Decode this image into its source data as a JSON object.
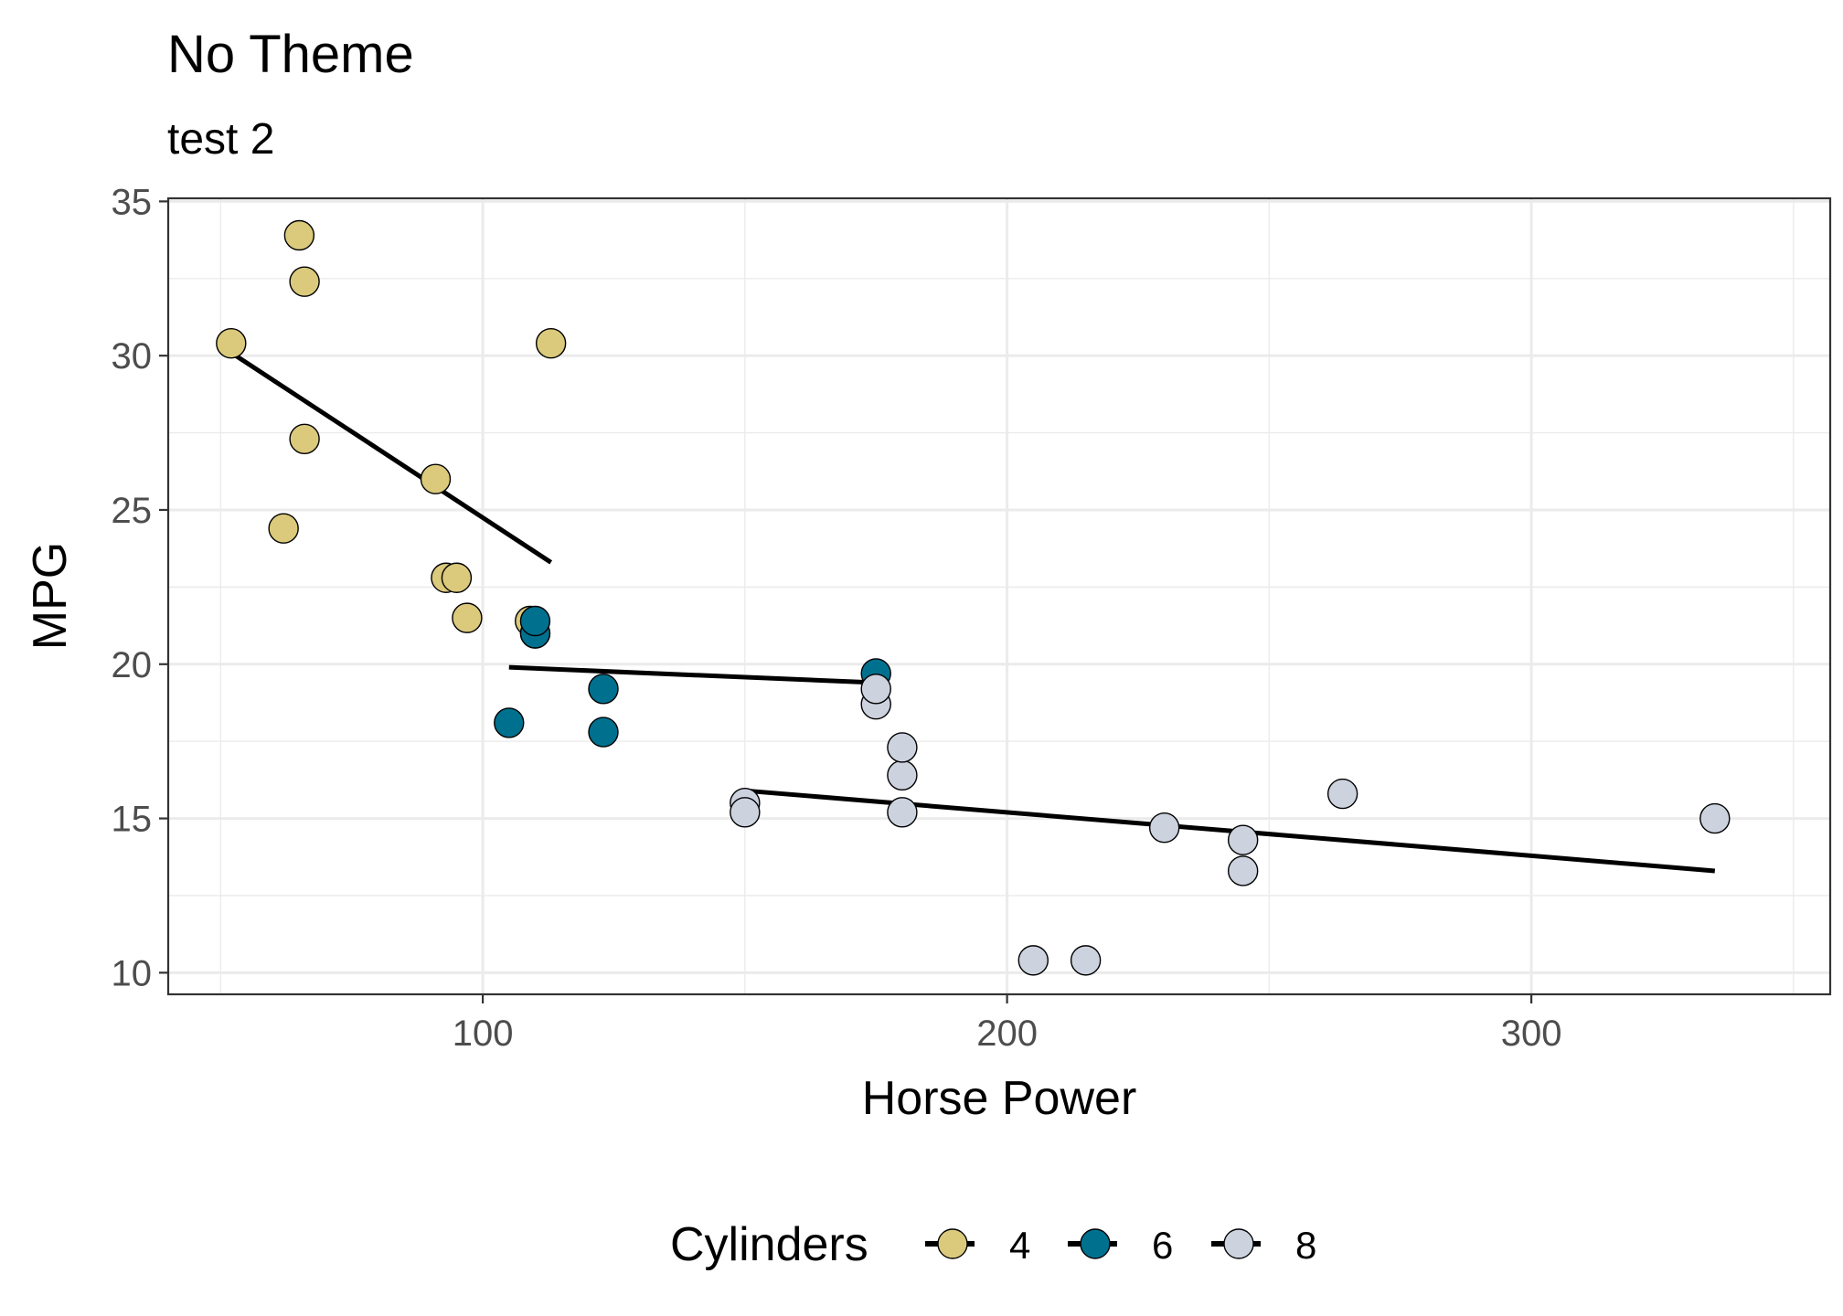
{
  "chart_data": {
    "type": "scatter",
    "title": "No Theme",
    "subtitle": "test 2",
    "xlabel": "Horse Power",
    "ylabel": "MPG",
    "xlim": [
      40,
      357
    ],
    "ylim": [
      9.3,
      35.1
    ],
    "x_ticks": [
      100,
      200,
      300
    ],
    "y_ticks": [
      10,
      15,
      20,
      25,
      30,
      35
    ],
    "grid": true,
    "legend": {
      "title": "Cylinders",
      "position": "bottom",
      "entries": [
        {
          "label": "4",
          "color": "#DBC97C"
        },
        {
          "label": "6",
          "color": "#00708F"
        },
        {
          "label": "8",
          "color": "#CCD2DE"
        }
      ]
    },
    "series": [
      {
        "name": "4",
        "color": "#DBC97C",
        "x": [
          93,
          62,
          95,
          66,
          52,
          65,
          97,
          66,
          91,
          113,
          109
        ],
        "y": [
          22.8,
          24.4,
          22.8,
          32.4,
          30.4,
          33.9,
          21.5,
          27.3,
          26.0,
          30.4,
          21.4
        ],
        "fit": {
          "x": [
            52,
            113
          ],
          "y": [
            30.1,
            23.3
          ]
        }
      },
      {
        "name": "6",
        "color": "#00708F",
        "x": [
          110,
          110,
          110,
          105,
          123,
          123,
          175
        ],
        "y": [
          21.0,
          21.0,
          21.4,
          18.1,
          19.2,
          17.8,
          19.7
        ],
        "fit": {
          "x": [
            105,
            175
          ],
          "y": [
            19.9,
            19.4
          ]
        }
      },
      {
        "name": "8",
        "color": "#CCD2DE",
        "x": [
          175,
          245,
          180,
          180,
          180,
          205,
          215,
          230,
          150,
          150,
          245,
          175,
          264,
          335
        ],
        "y": [
          18.7,
          14.3,
          16.4,
          17.3,
          15.2,
          10.4,
          10.4,
          14.7,
          15.5,
          15.2,
          13.3,
          19.2,
          15.8,
          15.0
        ],
        "fit": {
          "x": [
            150,
            335
          ],
          "y": [
            15.9,
            13.3
          ]
        }
      }
    ]
  }
}
